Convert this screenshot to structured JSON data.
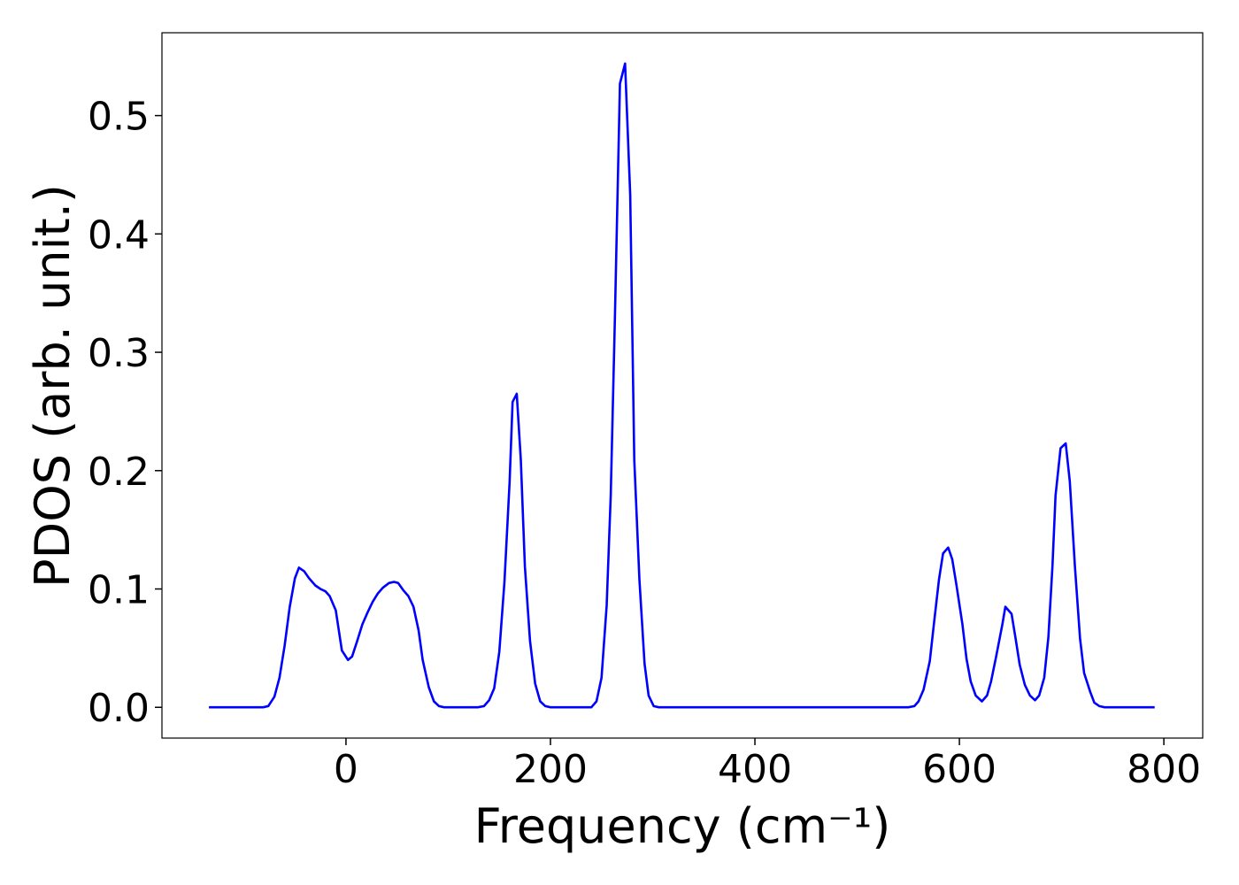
{
  "chart_data": {
    "type": "line",
    "x_label": "Frequency (cm⁻¹)",
    "y_label": "PDOS (arb. unit.)",
    "xlim": [
      -180,
      838
    ],
    "ylim": [
      -0.026,
      0.57
    ],
    "xticks": [
      0,
      200,
      400,
      600,
      800
    ],
    "yticks": [
      {
        "value": 0,
        "label": "0.0"
      },
      0.1,
      0.2,
      0.3,
      0.4,
      0.5
    ],
    "series": [
      {
        "color": "#0000ff",
        "x": [
          -134,
          -81,
          -76,
          -70,
          -65,
          -60,
          -55,
          -50,
          -46,
          -41,
          -36,
          -30,
          -25,
          -20,
          -16,
          -10,
          -4,
          2,
          6,
          11,
          16,
          21,
          26,
          31,
          36,
          42,
          47,
          51,
          56,
          61,
          66,
          71,
          75,
          81,
          86,
          91,
          96,
          129,
          135,
          140,
          145,
          150,
          155,
          160,
          163,
          167,
          171,
          175,
          180,
          185,
          190,
          195,
          200,
          240,
          245,
          250,
          255,
          259,
          263,
          268,
          273,
          278,
          282,
          287,
          292,
          296,
          301,
          306,
          550,
          556,
          560,
          565,
          571,
          575,
          580,
          584,
          589,
          593,
          597,
          603,
          607,
          611,
          616,
          622,
          627,
          631,
          636,
          642,
          645,
          651,
          655,
          659,
          664,
          669,
          674,
          678,
          683,
          687,
          691,
          694,
          699,
          704,
          708,
          713,
          718,
          722,
          728,
          732,
          737,
          742,
          791
        ],
        "values": [
          0,
          0,
          0.001,
          0.009,
          0.025,
          0.052,
          0.085,
          0.109,
          0.118,
          0.115,
          0.109,
          0.103,
          0.1,
          0.098,
          0.094,
          0.082,
          0.048,
          0.04,
          0.043,
          0.056,
          0.07,
          0.08,
          0.089,
          0.096,
          0.101,
          0.105,
          0.106,
          0.105,
          0.099,
          0.094,
          0.085,
          0.065,
          0.04,
          0.017,
          0.005,
          0.001,
          0,
          0,
          0.001,
          0.006,
          0.016,
          0.047,
          0.106,
          0.19,
          0.258,
          0.265,
          0.209,
          0.119,
          0.056,
          0.02,
          0.005,
          0.001,
          0,
          0,
          0.005,
          0.025,
          0.086,
          0.179,
          0.329,
          0.527,
          0.544,
          0.433,
          0.209,
          0.108,
          0.037,
          0.01,
          0.001,
          0,
          0,
          0.001,
          0.005,
          0.015,
          0.039,
          0.07,
          0.108,
          0.13,
          0.135,
          0.125,
          0.104,
          0.07,
          0.041,
          0.022,
          0.01,
          0.005,
          0.01,
          0.022,
          0.043,
          0.07,
          0.085,
          0.079,
          0.058,
          0.036,
          0.019,
          0.01,
          0.006,
          0.01,
          0.025,
          0.059,
          0.119,
          0.179,
          0.219,
          0.223,
          0.191,
          0.119,
          0.058,
          0.029,
          0.013,
          0.004,
          0.001,
          0,
          0
        ]
      }
    ]
  }
}
